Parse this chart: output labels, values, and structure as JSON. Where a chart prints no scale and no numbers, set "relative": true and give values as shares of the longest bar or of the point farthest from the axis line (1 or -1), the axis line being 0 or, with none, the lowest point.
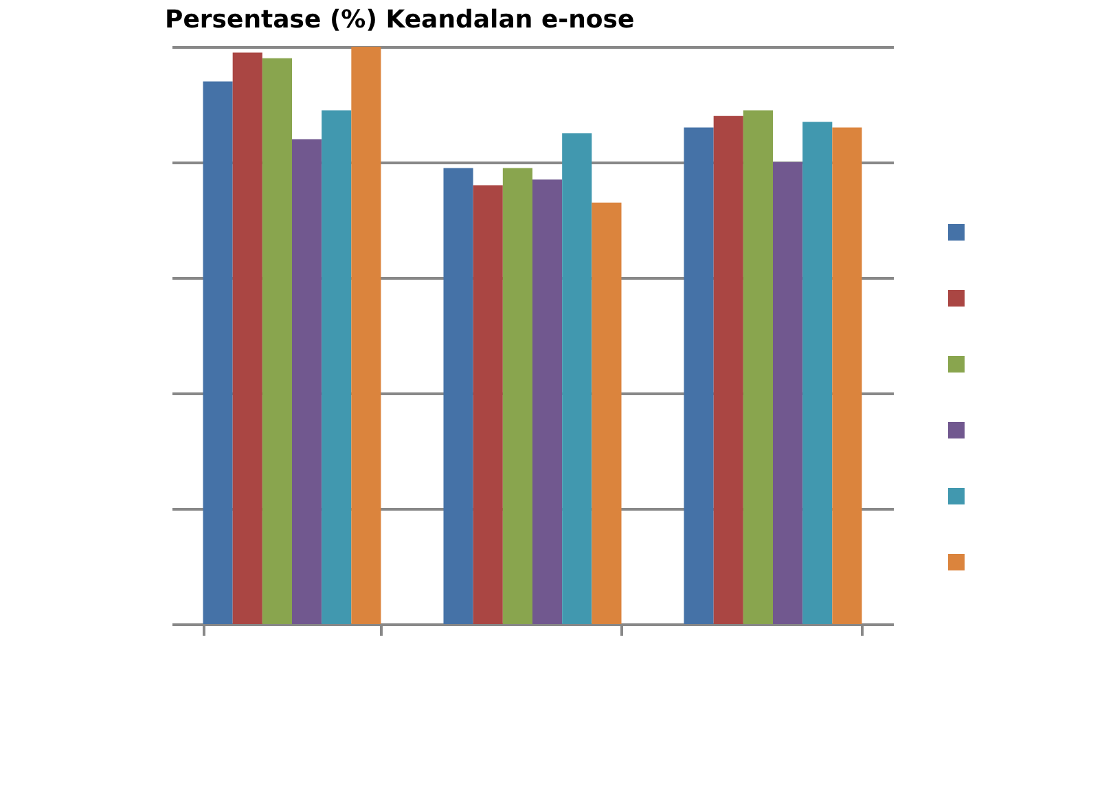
{
  "chart_data": {
    "type": "bar",
    "title": "Persentase (%) Keandalan e-nose",
    "relative": true,
    "grid": "y",
    "categories": [
      null,
      null,
      null
    ],
    "series": [
      {
        "color": "#4572a7",
        "values": [
          0.94,
          0.79,
          0.86
        ]
      },
      {
        "color": "#aa4643",
        "values": [
          0.99,
          0.76,
          0.88
        ]
      },
      {
        "color": "#89a54e",
        "values": [
          0.98,
          0.79,
          0.89
        ]
      },
      {
        "color": "#71588f",
        "values": [
          0.84,
          0.77,
          0.8
        ]
      },
      {
        "color": "#4198af",
        "values": [
          0.89,
          0.85,
          0.87
        ]
      },
      {
        "color": "#db843d",
        "values": [
          1,
          0.73,
          0.86
        ]
      }
    ]
  }
}
